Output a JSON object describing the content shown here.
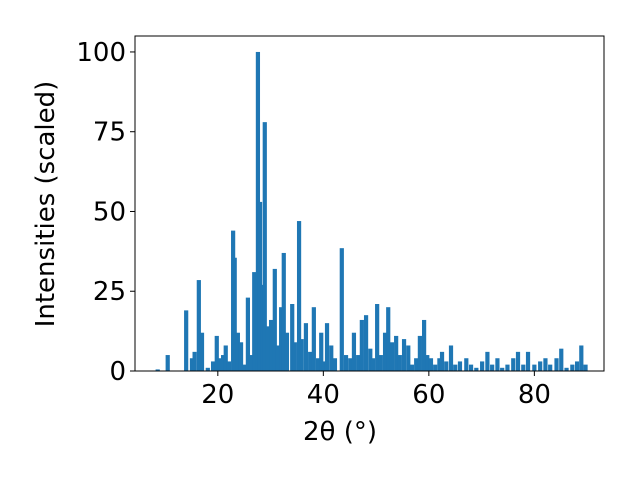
{
  "chart_data": {
    "type": "bar",
    "x_label": "2θ (°)",
    "y_label": "Intensities (scaled)",
    "color": "#1f77b4",
    "xlim": [
      4.3,
      93.2
    ],
    "xticks": [
      20,
      40,
      60,
      80
    ],
    "ylim": [
      0,
      105
    ],
    "yticks": [
      0,
      25,
      50,
      75,
      100
    ],
    "x": [
      8.6,
      10.5,
      14.0,
      15.1,
      15.6,
      16.4,
      17.0,
      18.1,
      19.1,
      19.8,
      20.4,
      21.0,
      21.5,
      22.1,
      22.9,
      23.2,
      23.8,
      24.4,
      25.0,
      25.7,
      26.3,
      26.9,
      27.6,
      28.0,
      28.4,
      28.9,
      29.5,
      30.1,
      30.8,
      31.4,
      32.0,
      32.5,
      33.1,
      34.1,
      34.6,
      35.4,
      35.9,
      36.7,
      37.5,
      38.2,
      39.0,
      39.6,
      40.1,
      40.7,
      41.5,
      42.2,
      43.5,
      44.3,
      45.1,
      45.8,
      46.6,
      47.3,
      48.1,
      48.9,
      49.4,
      50.2,
      50.9,
      51.7,
      52.3,
      53.0,
      53.8,
      54.5,
      55.3,
      56.1,
      56.8,
      57.6,
      58.3,
      59.1,
      59.7,
      60.4,
      61.2,
      62.0,
      62.5,
      63.3,
      64.2,
      65.0,
      65.9,
      67.1,
      68.0,
      69.0,
      70.1,
      71.1,
      72.0,
      73.0,
      73.9,
      74.9,
      76.0,
      76.9,
      77.9,
      78.8,
      80.0,
      81.1,
      82.1,
      83.0,
      84.2,
      85.1,
      86.1,
      87.2,
      88.1,
      88.9,
      89.7
    ],
    "values": [
      0.5,
      5,
      19,
      4,
      6,
      28.5,
      12,
      1,
      3,
      11,
      4,
      5,
      8,
      3,
      44,
      35.5,
      12,
      9,
      2,
      23,
      5,
      31,
      100,
      53,
      27,
      78,
      14,
      16,
      32,
      8,
      20,
      37,
      12,
      21,
      9,
      47,
      10,
      15,
      6,
      20,
      4,
      12,
      3,
      15,
      8,
      4,
      38.5,
      5,
      4,
      12,
      5,
      16,
      17.5,
      7,
      4,
      21,
      5,
      12,
      20,
      9,
      11,
      5,
      10,
      8,
      2,
      4,
      11,
      16,
      5,
      4,
      2,
      4,
      6,
      3,
      8,
      2,
      3,
      4,
      2,
      1,
      3,
      6,
      2,
      4,
      1,
      2,
      4,
      6,
      2,
      6,
      2,
      3,
      4,
      2,
      4,
      7,
      1,
      2,
      3,
      8,
      2
    ]
  }
}
